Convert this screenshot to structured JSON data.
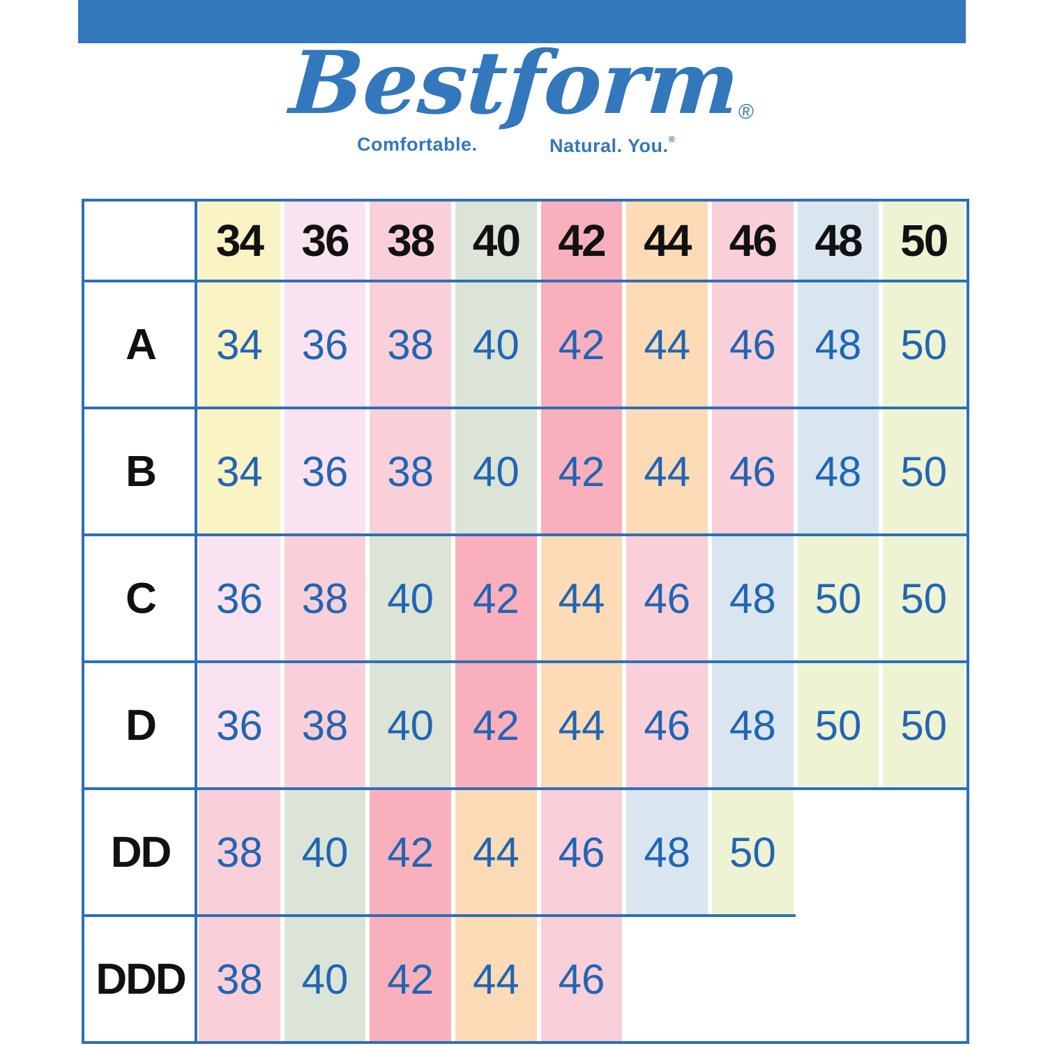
{
  "brand": {
    "name": "Bestform",
    "registered_mark": "®",
    "tagline_left": "Comfortable.",
    "tagline_right": "Natural. You.",
    "tagline_right_mark": "®"
  },
  "colors": {
    "top_bar": "#3377bc",
    "logo_blue": "#3377bc",
    "table_border": "#2e6fb7",
    "value_text": "#2165b4",
    "header_text": "#111111",
    "band_colors": {
      "34": "#faf3c4",
      "36": "#fae2f0",
      "38": "#f9d0d9",
      "40": "#dbe4d7",
      "42": "#f9b0bc",
      "44": "#fcdbb6",
      "46": "#f9cfd9",
      "48": "#d9e6ef",
      "50": "#eef3d3"
    }
  },
  "chart_data": {
    "type": "table",
    "title": "Bestform bra size chart",
    "columns": [
      "34",
      "36",
      "38",
      "40",
      "42",
      "44",
      "46",
      "48",
      "50"
    ],
    "rows": [
      {
        "label": "A",
        "values": [
          "34",
          "36",
          "38",
          "40",
          "42",
          "44",
          "46",
          "48",
          "50"
        ]
      },
      {
        "label": "B",
        "values": [
          "34",
          "36",
          "38",
          "40",
          "42",
          "44",
          "46",
          "48",
          "50"
        ]
      },
      {
        "label": "C",
        "values": [
          "36",
          "38",
          "40",
          "42",
          "44",
          "46",
          "48",
          "50",
          "50"
        ]
      },
      {
        "label": "D",
        "values": [
          "36",
          "38",
          "40",
          "42",
          "44",
          "46",
          "48",
          "50",
          "50"
        ]
      },
      {
        "label": "DD",
        "values": [
          "38",
          "40",
          "42",
          "44",
          "46",
          "48",
          "50",
          null,
          null
        ]
      },
      {
        "label": "DDD",
        "values": [
          "38",
          "40",
          "42",
          "44",
          "46",
          null,
          null,
          null,
          null
        ]
      }
    ]
  }
}
